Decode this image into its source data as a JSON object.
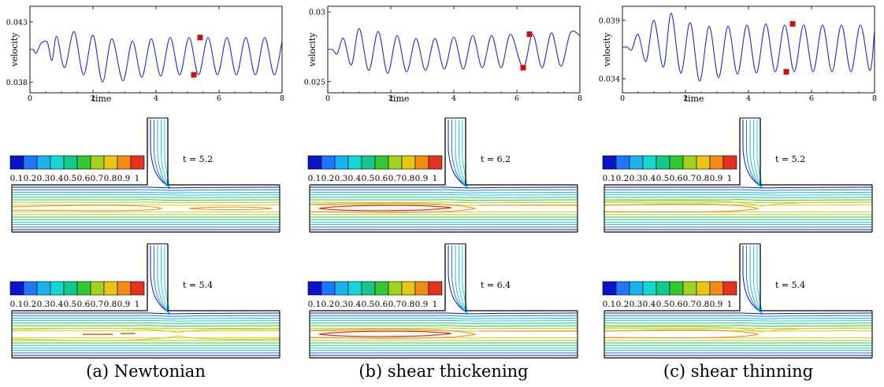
{
  "panels": [
    {
      "caption": "(a) Newtonian",
      "chart_data": {
        "type": "line",
        "xlabel": "time",
        "ylabel": "velocity",
        "xlim": [
          0,
          8
        ],
        "ylim": [
          0.0371,
          0.0443
        ],
        "xticks": [
          "0",
          "2",
          "4",
          "6",
          "8"
        ],
        "yticks": [
          {
            "value": 0.043,
            "label": "0.043"
          },
          {
            "value": 0.038,
            "label": "0.038"
          }
        ],
        "series": [
          {
            "color": "#1f2fd6",
            "values": [
              {
                "x": 0,
                "y": 0.0407
              },
              {
                "x": 0.1,
                "y": 0.0407
              },
              {
                "x": 0.2,
                "y": 0.0404
              },
              {
                "x": 0.35,
                "y": 0.0412
              },
              {
                "x": 0.55,
                "y": 0.0413
              },
              {
                "x": 0.7,
                "y": 0.0398
              },
              {
                "x": 0.85,
                "y": 0.0418
              },
              {
                "x": 1.1,
                "y": 0.0392
              },
              {
                "x": 1.4,
                "y": 0.0422
              },
              {
                "x": 1.7,
                "y": 0.0386
              },
              {
                "x": 2.0,
                "y": 0.0419
              },
              {
                "x": 2.3,
                "y": 0.038
              },
              {
                "x": 2.6,
                "y": 0.0416
              },
              {
                "x": 2.95,
                "y": 0.0381
              },
              {
                "x": 3.25,
                "y": 0.0414
              },
              {
                "x": 3.55,
                "y": 0.0384
              },
              {
                "x": 3.85,
                "y": 0.0416
              },
              {
                "x": 4.15,
                "y": 0.0385
              },
              {
                "x": 4.45,
                "y": 0.0417
              },
              {
                "x": 4.75,
                "y": 0.0386
              },
              {
                "x": 5.05,
                "y": 0.0417
              },
              {
                "x": 5.35,
                "y": 0.0386
              },
              {
                "x": 5.65,
                "y": 0.0417
              },
              {
                "x": 5.95,
                "y": 0.0386
              },
              {
                "x": 6.25,
                "y": 0.0417
              },
              {
                "x": 6.55,
                "y": 0.0386
              },
              {
                "x": 6.85,
                "y": 0.0417
              },
              {
                "x": 7.15,
                "y": 0.0386
              },
              {
                "x": 7.45,
                "y": 0.0417
              },
              {
                "x": 7.75,
                "y": 0.0386
              },
              {
                "x": 8.0,
                "y": 0.0414
              }
            ]
          }
        ],
        "markers": [
          {
            "x": 5.2,
            "y": 0.0386,
            "color": "#cc1111"
          },
          {
            "x": 5.4,
            "y": 0.0417,
            "color": "#cc1111"
          }
        ]
      },
      "snapshots": [
        {
          "time_label": "t = 5.2",
          "variant": "split"
        },
        {
          "time_label": "t = 5.4",
          "variant": "dashed"
        }
      ]
    },
    {
      "caption": "(b) shear thickening",
      "chart_data": {
        "type": "line",
        "xlabel": "time",
        "ylabel": "velocity",
        "xlim": [
          0,
          8
        ],
        "ylim": [
          0.0242,
          0.0304
        ],
        "xticks": [
          "0",
          "2",
          "4",
          "6",
          "8"
        ],
        "yticks": [
          {
            "value": 0.03,
            "label": "0.03"
          },
          {
            "value": 0.025,
            "label": "0.025"
          }
        ],
        "series": [
          {
            "color": "#1f2fd6",
            "values": [
              {
                "x": 0,
                "y": 0.0273
              },
              {
                "x": 0.15,
                "y": 0.0273
              },
              {
                "x": 0.3,
                "y": 0.027
              },
              {
                "x": 0.5,
                "y": 0.0281
              },
              {
                "x": 0.75,
                "y": 0.0262
              },
              {
                "x": 1.0,
                "y": 0.0288
              },
              {
                "x": 1.3,
                "y": 0.0258
              },
              {
                "x": 1.6,
                "y": 0.0286
              },
              {
                "x": 1.9,
                "y": 0.0256
              },
              {
                "x": 2.2,
                "y": 0.0283
              },
              {
                "x": 2.5,
                "y": 0.0257
              },
              {
                "x": 2.8,
                "y": 0.0281
              },
              {
                "x": 3.1,
                "y": 0.0258
              },
              {
                "x": 3.4,
                "y": 0.0281
              },
              {
                "x": 3.7,
                "y": 0.0259
              },
              {
                "x": 4.0,
                "y": 0.0282
              },
              {
                "x": 4.3,
                "y": 0.0259
              },
              {
                "x": 4.6,
                "y": 0.0283
              },
              {
                "x": 4.9,
                "y": 0.026
              },
              {
                "x": 5.2,
                "y": 0.0283
              },
              {
                "x": 5.5,
                "y": 0.026
              },
              {
                "x": 5.8,
                "y": 0.0284
              },
              {
                "x": 6.2,
                "y": 0.026
              },
              {
                "x": 6.5,
                "y": 0.0284
              },
              {
                "x": 6.8,
                "y": 0.026
              },
              {
                "x": 7.1,
                "y": 0.0285
              },
              {
                "x": 7.4,
                "y": 0.0261
              },
              {
                "x": 7.7,
                "y": 0.0285
              },
              {
                "x": 8.0,
                "y": 0.0283
              }
            ]
          }
        ],
        "markers": [
          {
            "x": 6.2,
            "y": 0.026,
            "color": "#cc1111"
          },
          {
            "x": 6.4,
            "y": 0.0284,
            "color": "#cc1111"
          }
        ]
      },
      "snapshots": [
        {
          "time_label": "t = 6.2",
          "variant": "long"
        },
        {
          "time_label": "t = 6.4",
          "variant": "long"
        }
      ]
    },
    {
      "caption": "(c) shear thinning",
      "chart_data": {
        "type": "line",
        "xlabel": "time",
        "ylabel": "velocity",
        "xlim": [
          0,
          8
        ],
        "ylim": [
          0.0328,
          0.0402
        ],
        "xticks": [
          "0",
          "2",
          "4",
          "6",
          "8"
        ],
        "yticks": [
          {
            "value": 0.039,
            "label": "0.039"
          },
          {
            "value": 0.034,
            "label": "0.034"
          }
        ],
        "series": [
          {
            "color": "#1f2fd6",
            "values": [
              {
                "x": 0,
                "y": 0.0367
              },
              {
                "x": 0.15,
                "y": 0.0367
              },
              {
                "x": 0.3,
                "y": 0.0365
              },
              {
                "x": 0.5,
                "y": 0.0378
              },
              {
                "x": 0.75,
                "y": 0.0355
              },
              {
                "x": 1.0,
                "y": 0.039
              },
              {
                "x": 1.3,
                "y": 0.035
              },
              {
                "x": 1.55,
                "y": 0.0396
              },
              {
                "x": 1.85,
                "y": 0.0345
              },
              {
                "x": 2.15,
                "y": 0.0388
              },
              {
                "x": 2.45,
                "y": 0.0338
              },
              {
                "x": 2.75,
                "y": 0.0385
              },
              {
                "x": 3.05,
                "y": 0.0341
              },
              {
                "x": 3.35,
                "y": 0.0385
              },
              {
                "x": 3.65,
                "y": 0.0344
              },
              {
                "x": 3.95,
                "y": 0.0386
              },
              {
                "x": 4.25,
                "y": 0.0345
              },
              {
                "x": 4.55,
                "y": 0.0387
              },
              {
                "x": 4.85,
                "y": 0.0346
              },
              {
                "x": 5.15,
                "y": 0.0386
              },
              {
                "x": 5.45,
                "y": 0.0346
              },
              {
                "x": 5.75,
                "y": 0.0386
              },
              {
                "x": 6.05,
                "y": 0.0346
              },
              {
                "x": 6.35,
                "y": 0.0386
              },
              {
                "x": 6.65,
                "y": 0.0346
              },
              {
                "x": 6.95,
                "y": 0.0386
              },
              {
                "x": 7.25,
                "y": 0.0346
              },
              {
                "x": 7.55,
                "y": 0.0386
              },
              {
                "x": 7.85,
                "y": 0.0347
              },
              {
                "x": 8.0,
                "y": 0.0382
              }
            ]
          }
        ],
        "markers": [
          {
            "x": 5.2,
            "y": 0.0346,
            "color": "#cc1111"
          },
          {
            "x": 5.4,
            "y": 0.0387,
            "color": "#cc1111"
          }
        ]
      },
      "snapshots": [
        {
          "time_label": "t = 5.2",
          "variant": "short"
        },
        {
          "time_label": "t = 5.4",
          "variant": "short"
        }
      ]
    }
  ],
  "colorbar": {
    "labels": [
      "0.1",
      "0.2",
      "0.3",
      "0.4",
      "0.5",
      "0.6",
      "0.7",
      "0.8",
      "0.9",
      "1"
    ],
    "colors": [
      "#0a14c8",
      "#1e78ff",
      "#19b4f0",
      "#14d7d2",
      "#14c88c",
      "#32c832",
      "#a0d21e",
      "#e6c814",
      "#f08c14",
      "#e6321e"
    ]
  },
  "contour_colors": [
    "#0a14c8",
    "#1e78ff",
    "#19b4f0",
    "#14d7d2",
    "#14c88c",
    "#32c832",
    "#a0d21e",
    "#e6c814",
    "#f08c14",
    "#e6321e"
  ]
}
